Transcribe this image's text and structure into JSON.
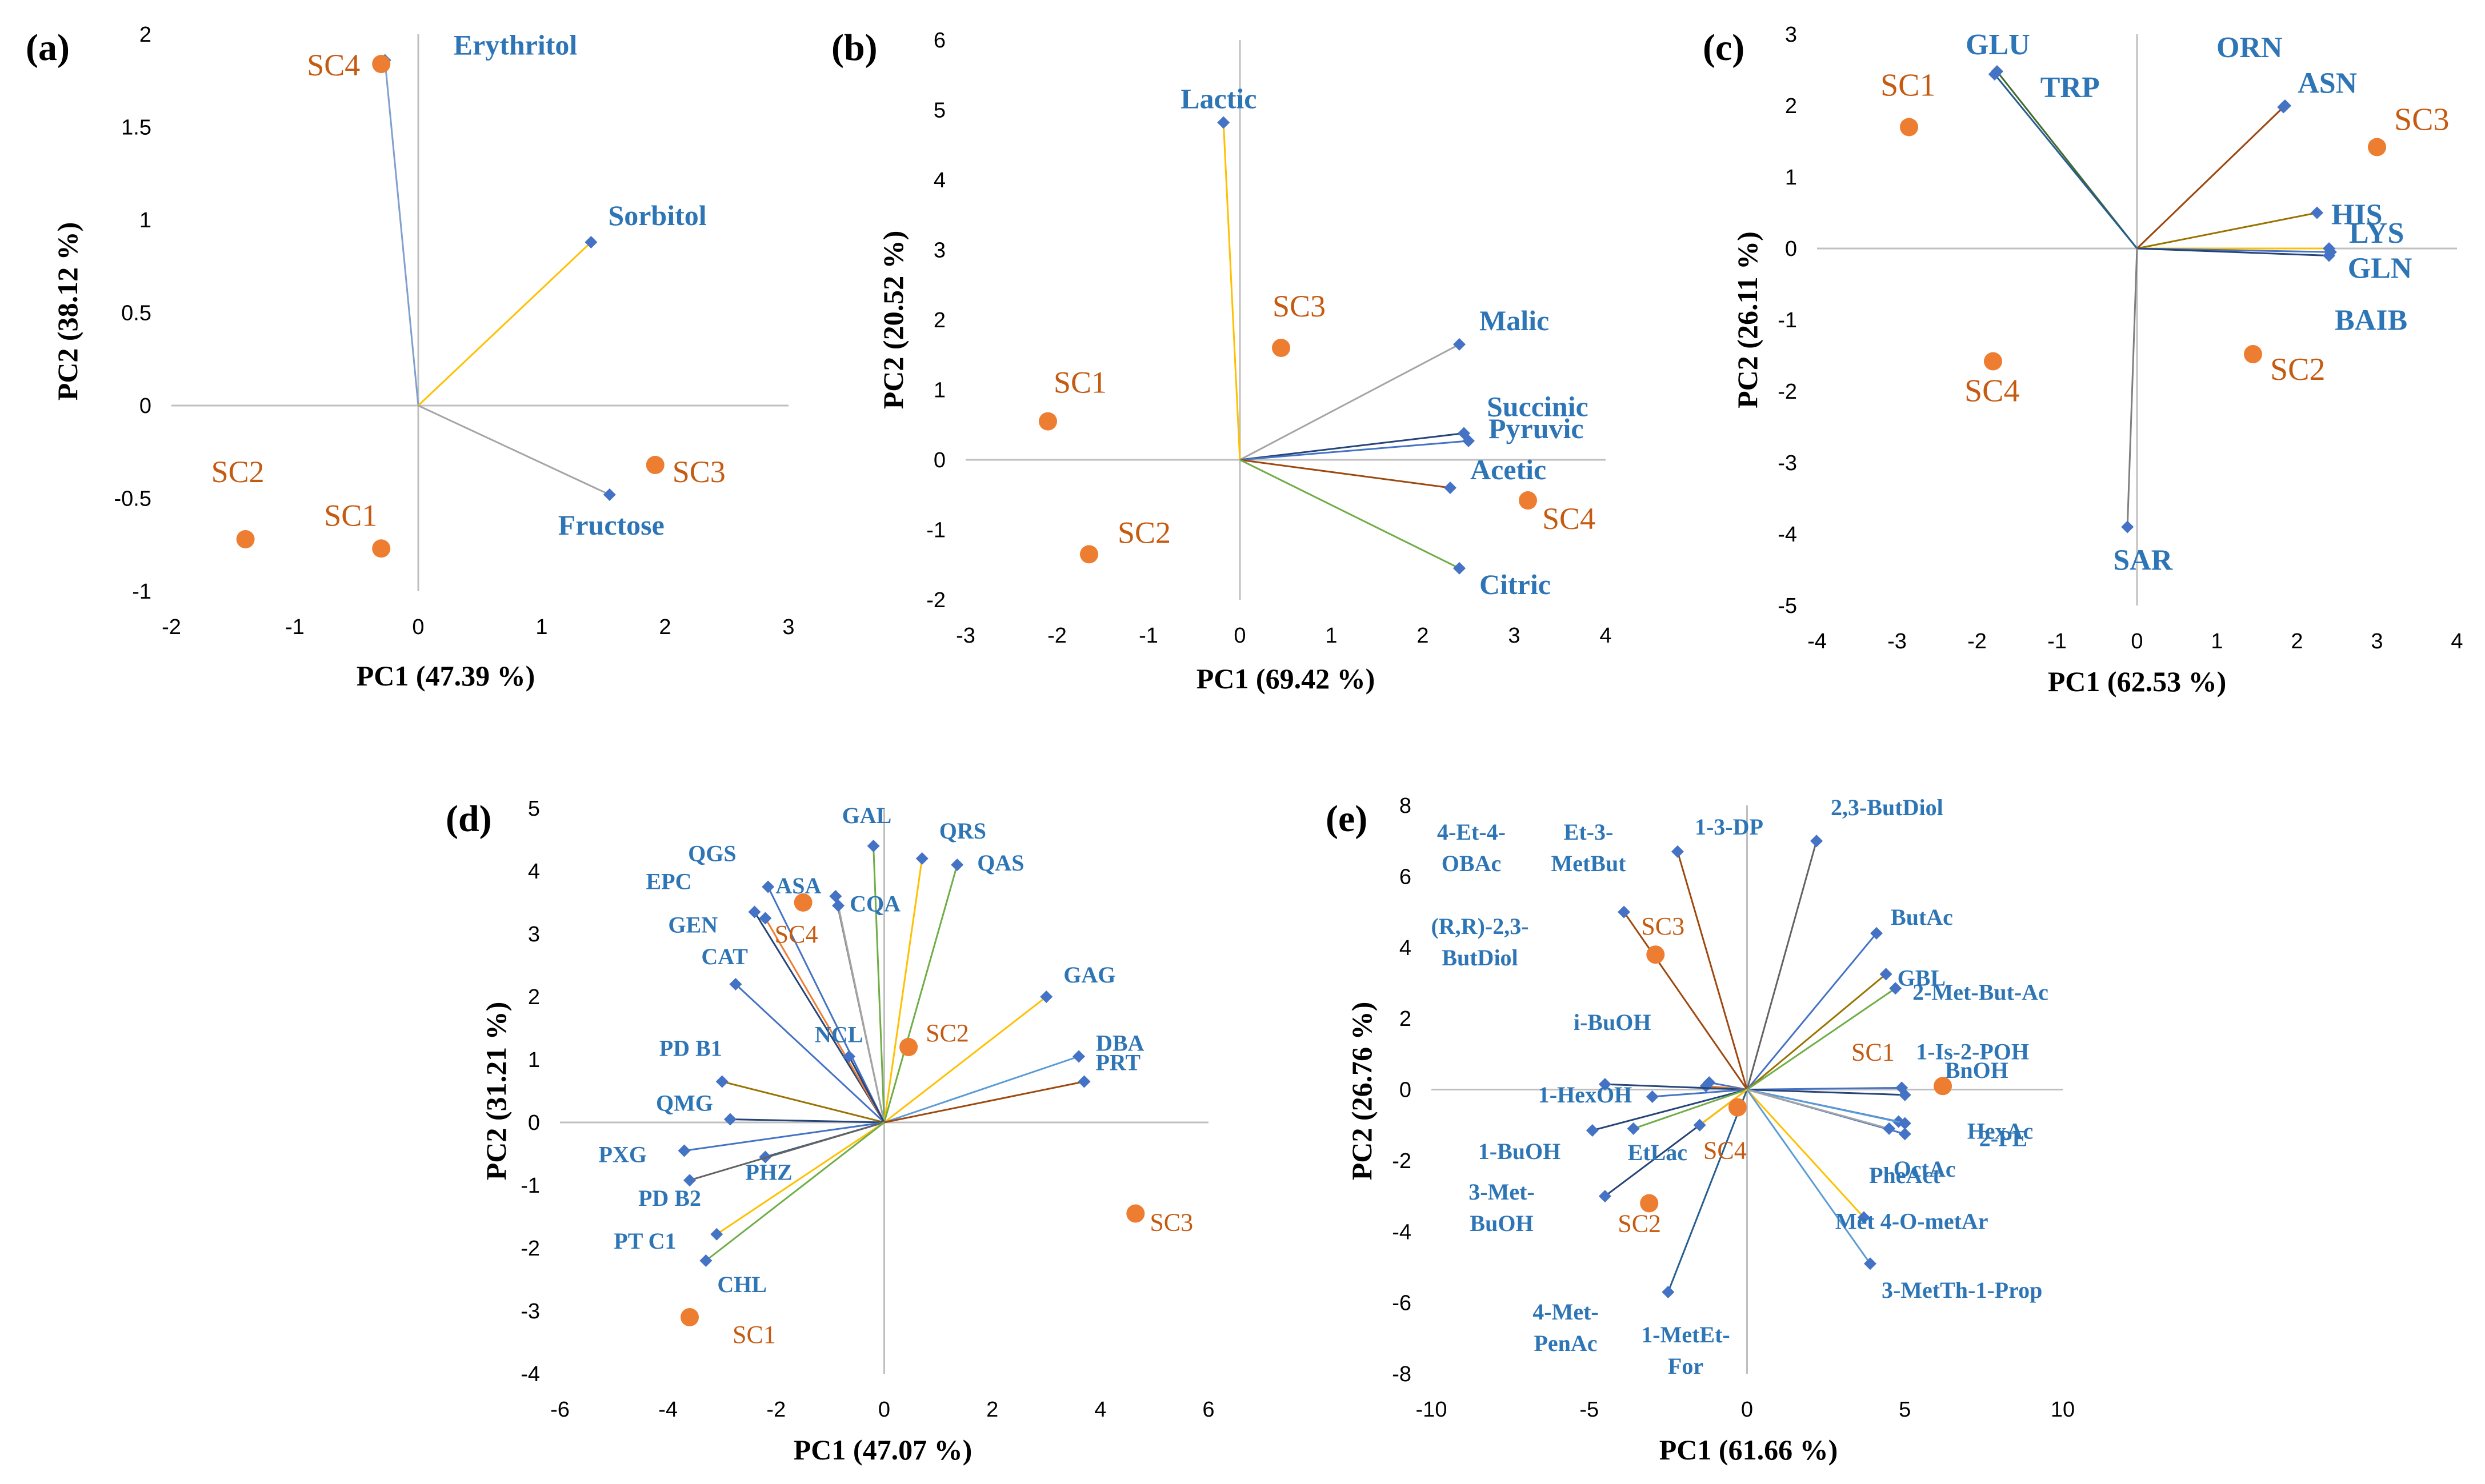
{
  "colors": {
    "variable": "#4472c4",
    "variable_label": "#2e75b6",
    "sample": "#ed7d31",
    "sample_label": "#c55a11",
    "axis": "#bfbfbf",
    "loading_palette": [
      "#4472c4",
      "#ffc000",
      "#a5a5a5",
      "#264478",
      "#9e480e",
      "#70ad47",
      "#636363",
      "#997300",
      "#255e91",
      "#43682b",
      "#5b9bd5"
    ]
  },
  "chart_data": [
    {
      "type": "scatter",
      "panel": "(a)",
      "xlabel": "PC1 (47.39 %)",
      "ylabel": "PC2 (38.12 %)",
      "xlim": [
        -2,
        3
      ],
      "ylim": [
        -1,
        2
      ],
      "xticks": [
        -2,
        -1,
        0,
        1,
        2,
        3
      ],
      "yticks": [
        -1,
        -0.5,
        0,
        0.5,
        1,
        1.5,
        2
      ],
      "variables": [
        {
          "name": "Erythritol",
          "x": -0.27,
          "y": 1.86,
          "color": "#7f9fcf"
        },
        {
          "name": "Sorbitol",
          "x": 1.4,
          "y": 0.88,
          "color": "#ffc000"
        },
        {
          "name": "Fructose",
          "x": 1.55,
          "y": -0.48,
          "color": "#a5a5a5"
        }
      ],
      "samples": [
        {
          "name": "SC4",
          "x": -0.3,
          "y": 1.84
        },
        {
          "name": "SC3",
          "x": 1.92,
          "y": -0.32
        },
        {
          "name": "SC2",
          "x": -1.4,
          "y": -0.72
        },
        {
          "name": "SC1",
          "x": -0.3,
          "y": -0.77
        }
      ]
    },
    {
      "type": "scatter",
      "panel": "(b)",
      "xlabel": "PC1 (69.42 %)",
      "ylabel": "PC2 (20.52 %)",
      "xlim": [
        -3,
        4
      ],
      "ylim": [
        -2,
        6
      ],
      "xticks": [
        -3,
        -2,
        -1,
        0,
        1,
        2,
        3,
        4
      ],
      "yticks": [
        -2,
        -1,
        0,
        1,
        2,
        3,
        4,
        5,
        6
      ],
      "variables": [
        {
          "name": "Lactic",
          "x": -0.18,
          "y": 4.82,
          "color": "#ffc000"
        },
        {
          "name": "Malic",
          "x": 2.4,
          "y": 1.65,
          "color": "#a5a5a5"
        },
        {
          "name": "Succinic",
          "x": 2.45,
          "y": 0.38,
          "color": "#264478"
        },
        {
          "name": "Pyruvic",
          "x": 2.5,
          "y": 0.27,
          "color": "#4472c4"
        },
        {
          "name": "Acetic",
          "x": 2.3,
          "y": -0.4,
          "color": "#9e480e"
        },
        {
          "name": "Citric",
          "x": 2.4,
          "y": -1.55,
          "color": "#70ad47"
        }
      ],
      "samples": [
        {
          "name": "SC3",
          "x": 0.45,
          "y": 1.6
        },
        {
          "name": "SC1",
          "x": -2.1,
          "y": 0.55
        },
        {
          "name": "SC2",
          "x": -1.65,
          "y": -1.35
        },
        {
          "name": "SC4",
          "x": 3.15,
          "y": -0.58
        }
      ]
    },
    {
      "type": "scatter",
      "panel": "(c)",
      "xlabel": "PC1 (62.53 %)",
      "ylabel": "PC2 (26.11 %)",
      "xlim": [
        -4,
        4
      ],
      "ylim": [
        -5,
        3
      ],
      "xticks": [
        -4,
        -3,
        -2,
        -1,
        0,
        1,
        2,
        3,
        4
      ],
      "yticks": [
        -5,
        -4,
        -3,
        -2,
        -1,
        0,
        1,
        2,
        3
      ],
      "variables": [
        {
          "name": "GLU",
          "x": -1.75,
          "y": 2.48,
          "color": "#43682b"
        },
        {
          "name": "TRP",
          "x": -1.78,
          "y": 2.44,
          "color": "#255e91"
        },
        {
          "name": "ORN",
          "x": 1.85,
          "y": 2.0,
          "color": "#a5a5a5"
        },
        {
          "name": "ASN",
          "x": 1.83,
          "y": 1.98,
          "color": "#9e480e"
        },
        {
          "name": "HIS",
          "x": 2.25,
          "y": 0.5,
          "color": "#997300"
        },
        {
          "name": "LYS",
          "x": 2.4,
          "y": 0.0,
          "color": "#ffc000"
        },
        {
          "name": "GLN",
          "x": 2.42,
          "y": -0.05,
          "color": "#4472c4"
        },
        {
          "name": "BAIB",
          "x": 2.4,
          "y": -0.1,
          "color": "#264478"
        },
        {
          "name": "SAR",
          "x": -0.12,
          "y": -3.9,
          "color": "#7f7f7f"
        }
      ],
      "samples": [
        {
          "name": "SC1",
          "x": -2.85,
          "y": 1.7
        },
        {
          "name": "SC3",
          "x": 3.0,
          "y": 1.42
        },
        {
          "name": "SC4",
          "x": -1.8,
          "y": -1.58
        },
        {
          "name": "SC2",
          "x": 1.45,
          "y": -1.48
        }
      ]
    },
    {
      "type": "scatter",
      "panel": "(d)",
      "xlabel": "PC1 (47.07 %)",
      "ylabel": "PC2 (31.21 %)",
      "xlim": [
        -6,
        6
      ],
      "ylim": [
        -4,
        5
      ],
      "xticks": [
        -6,
        -4,
        -2,
        0,
        2,
        4,
        6
      ],
      "yticks": [
        -4,
        -3,
        -2,
        -1,
        0,
        1,
        2,
        3,
        4,
        5
      ],
      "variables": [
        {
          "name": "QGS",
          "x": -2.15,
          "y": 3.75,
          "color": "#4472c4"
        },
        {
          "name": "ASA",
          "x": -0.9,
          "y": 3.6,
          "color": "#7f7f7f"
        },
        {
          "name": "GAL",
          "x": -0.2,
          "y": 4.4,
          "color": "#70ad47"
        },
        {
          "name": "CQA",
          "x": -0.85,
          "y": 3.45,
          "color": "#a5a5a5"
        },
        {
          "name": "QRS",
          "x": 0.7,
          "y": 4.2,
          "color": "#ffc000"
        },
        {
          "name": "QAS",
          "x": 1.35,
          "y": 4.1,
          "color": "#70ad47"
        },
        {
          "name": "EPC",
          "x": -2.4,
          "y": 3.35,
          "color": "#264478"
        },
        {
          "name": "GEN",
          "x": -2.2,
          "y": 3.25,
          "color": "#ed7d31"
        },
        {
          "name": "CAT",
          "x": -2.75,
          "y": 2.2,
          "color": "#4472c4"
        },
        {
          "name": "NCL",
          "x": -0.65,
          "y": 1.05,
          "color": "#264478"
        },
        {
          "name": "GAG",
          "x": 3.0,
          "y": 2.0,
          "color": "#ffc000"
        },
        {
          "name": "DBA",
          "x": 3.6,
          "y": 1.05,
          "color": "#5b9bd5"
        },
        {
          "name": "PRT",
          "x": 3.7,
          "y": 0.65,
          "color": "#9e480e"
        },
        {
          "name": "PD B1",
          "x": -3.0,
          "y": 0.65,
          "color": "#997300"
        },
        {
          "name": "QMG",
          "x": -2.85,
          "y": 0.05,
          "color": "#264478"
        },
        {
          "name": "PXG",
          "x": -3.7,
          "y": -0.45,
          "color": "#4472c4"
        },
        {
          "name": "PHZ",
          "x": -2.2,
          "y": -0.55,
          "color": "#255e91"
        },
        {
          "name": "PD B2",
          "x": -3.6,
          "y": -0.92,
          "color": "#636363"
        },
        {
          "name": "PT C1",
          "x": -3.1,
          "y": -1.78,
          "color": "#ffc000"
        },
        {
          "name": "CHL",
          "x": -3.3,
          "y": -2.2,
          "color": "#70ad47"
        }
      ],
      "samples": [
        {
          "name": "SC4",
          "x": -1.5,
          "y": 3.5
        },
        {
          "name": "SC2",
          "x": 0.45,
          "y": 1.2
        },
        {
          "name": "SC3",
          "x": 4.65,
          "y": -1.45
        },
        {
          "name": "SC1",
          "x": -3.6,
          "y": -3.1
        }
      ]
    },
    {
      "type": "scatter",
      "panel": "(e)",
      "xlabel": "PC1 (61.66 %)",
      "ylabel": "PC2 (26.76 %)",
      "xlim": [
        -10,
        10
      ],
      "ylim": [
        -8,
        8
      ],
      "xticks": [
        -10,
        -5,
        0,
        5,
        10
      ],
      "yticks": [
        -8,
        -6,
        -4,
        -2,
        0,
        2,
        4,
        6,
        8
      ],
      "variables": [
        {
          "name": "4-Et-4-OBAc",
          "x": -1.2,
          "y": 0.2,
          "color": "#4472c4"
        },
        {
          "name": "Et-3-MetBut",
          "x": -1.3,
          "y": 0.1,
          "color": "#ed7d31"
        },
        {
          "name": "1-3-DP",
          "x": -2.2,
          "y": 6.7,
          "color": "#9e480e"
        },
        {
          "name": "2,3-ButDiol",
          "x": 2.2,
          "y": 7.0,
          "color": "#636363"
        },
        {
          "name": "(R,R)-2,3-ButDiol",
          "x": -3.9,
          "y": 5.0,
          "color": "#9e480e"
        },
        {
          "name": "ButAc",
          "x": 4.1,
          "y": 4.4,
          "color": "#4472c4"
        },
        {
          "name": "GBL",
          "x": 4.4,
          "y": 3.25,
          "color": "#997300"
        },
        {
          "name": "2-Met-But-Ac",
          "x": 4.7,
          "y": 2.85,
          "color": "#70ad47"
        },
        {
          "name": "i-BuOH",
          "x": -4.5,
          "y": 0.15,
          "color": "#264478"
        },
        {
          "name": "1-Is-2-POH",
          "x": 4.9,
          "y": 0.05,
          "color": "#4472c4"
        },
        {
          "name": "BnOH",
          "x": 5.0,
          "y": -0.15,
          "color": "#264478"
        },
        {
          "name": "1-HexOH",
          "x": -3.0,
          "y": -0.2,
          "color": "#4472c4"
        },
        {
          "name": "HexAc",
          "x": 4.8,
          "y": -0.9,
          "color": "#4472c4"
        },
        {
          "name": "1-BuOH",
          "x": -4.9,
          "y": -1.15,
          "color": "#264478"
        },
        {
          "name": "EtLac",
          "x": -3.6,
          "y": -1.1,
          "color": "#70ad47"
        },
        {
          "name": "2-PE",
          "x": 5.0,
          "y": -0.95,
          "color": "#5b9bd5"
        },
        {
          "name": "OctAc",
          "x": 5.0,
          "y": -1.25,
          "color": "#4472c4"
        },
        {
          "name": "PheAct",
          "x": 4.5,
          "y": -1.1,
          "color": "#a5a5a5"
        },
        {
          "name": "3-Met-BuOH",
          "x": -4.5,
          "y": -3.0,
          "color": "#264478"
        },
        {
          "name": "Met 4-O-metAr",
          "x": 3.7,
          "y": -3.6,
          "color": "#ffc000"
        },
        {
          "name": "4-Met-PenAc",
          "x": -2.5,
          "y": -5.7,
          "color": "#255e91"
        },
        {
          "name": "3-MetTh-1-Prop",
          "x": 3.9,
          "y": -4.9,
          "color": "#5b9bd5"
        },
        {
          "name": "1-MetEt-For",
          "x": -1.5,
          "y": -1.0,
          "color": "#ffc000"
        }
      ],
      "samples": [
        {
          "name": "SC3",
          "x": -2.9,
          "y": 3.8
        },
        {
          "name": "SC1",
          "x": 6.2,
          "y": 0.1
        },
        {
          "name": "SC4",
          "x": -0.3,
          "y": -0.5
        },
        {
          "name": "SC2",
          "x": -3.1,
          "y": -3.2
        }
      ]
    }
  ]
}
